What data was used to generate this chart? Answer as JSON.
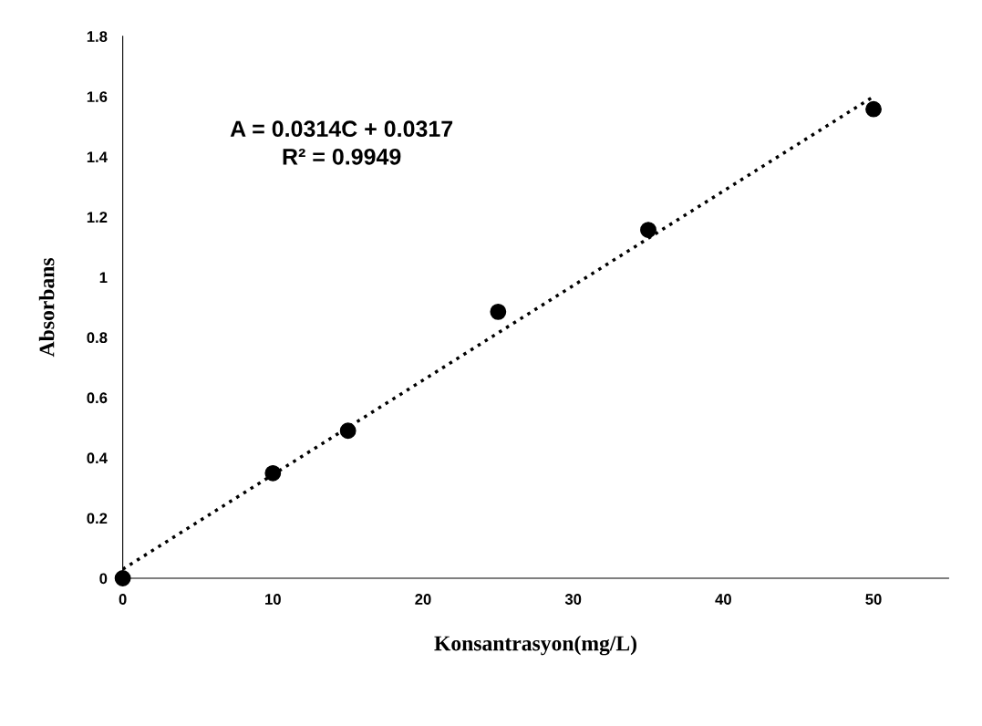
{
  "chart_data": {
    "type": "scatter",
    "xlabel": "Konsantrasyon(mg/L)",
    "ylabel": "Absorbans",
    "x": [
      0,
      10,
      15,
      25,
      35,
      50
    ],
    "series": [
      {
        "color": "#000000",
        "values": [
          0,
          0.349,
          0.49,
          0.885,
          1.157,
          1.558
        ],
        "marker": "circle"
      },
      {
        "type": "line",
        "color": "#000000",
        "x": [
          0,
          50
        ],
        "values": [
          0.03,
          1.6
        ],
        "line_style": "dotted",
        "marker": "none"
      }
    ],
    "annotations": [
      "A = 0.0314C + 0.0317\nR² = 0.9949"
    ],
    "xlim": [
      0,
      55
    ],
    "xticks": [
      0,
      10,
      20,
      30,
      40,
      50
    ],
    "ylim": [
      0,
      1.8
    ],
    "yticks": [
      0,
      0.2,
      0.4,
      0.6,
      0.8,
      1,
      1.2,
      1.4,
      1.6,
      1.8
    ],
    "grid": false,
    "legend": false
  }
}
